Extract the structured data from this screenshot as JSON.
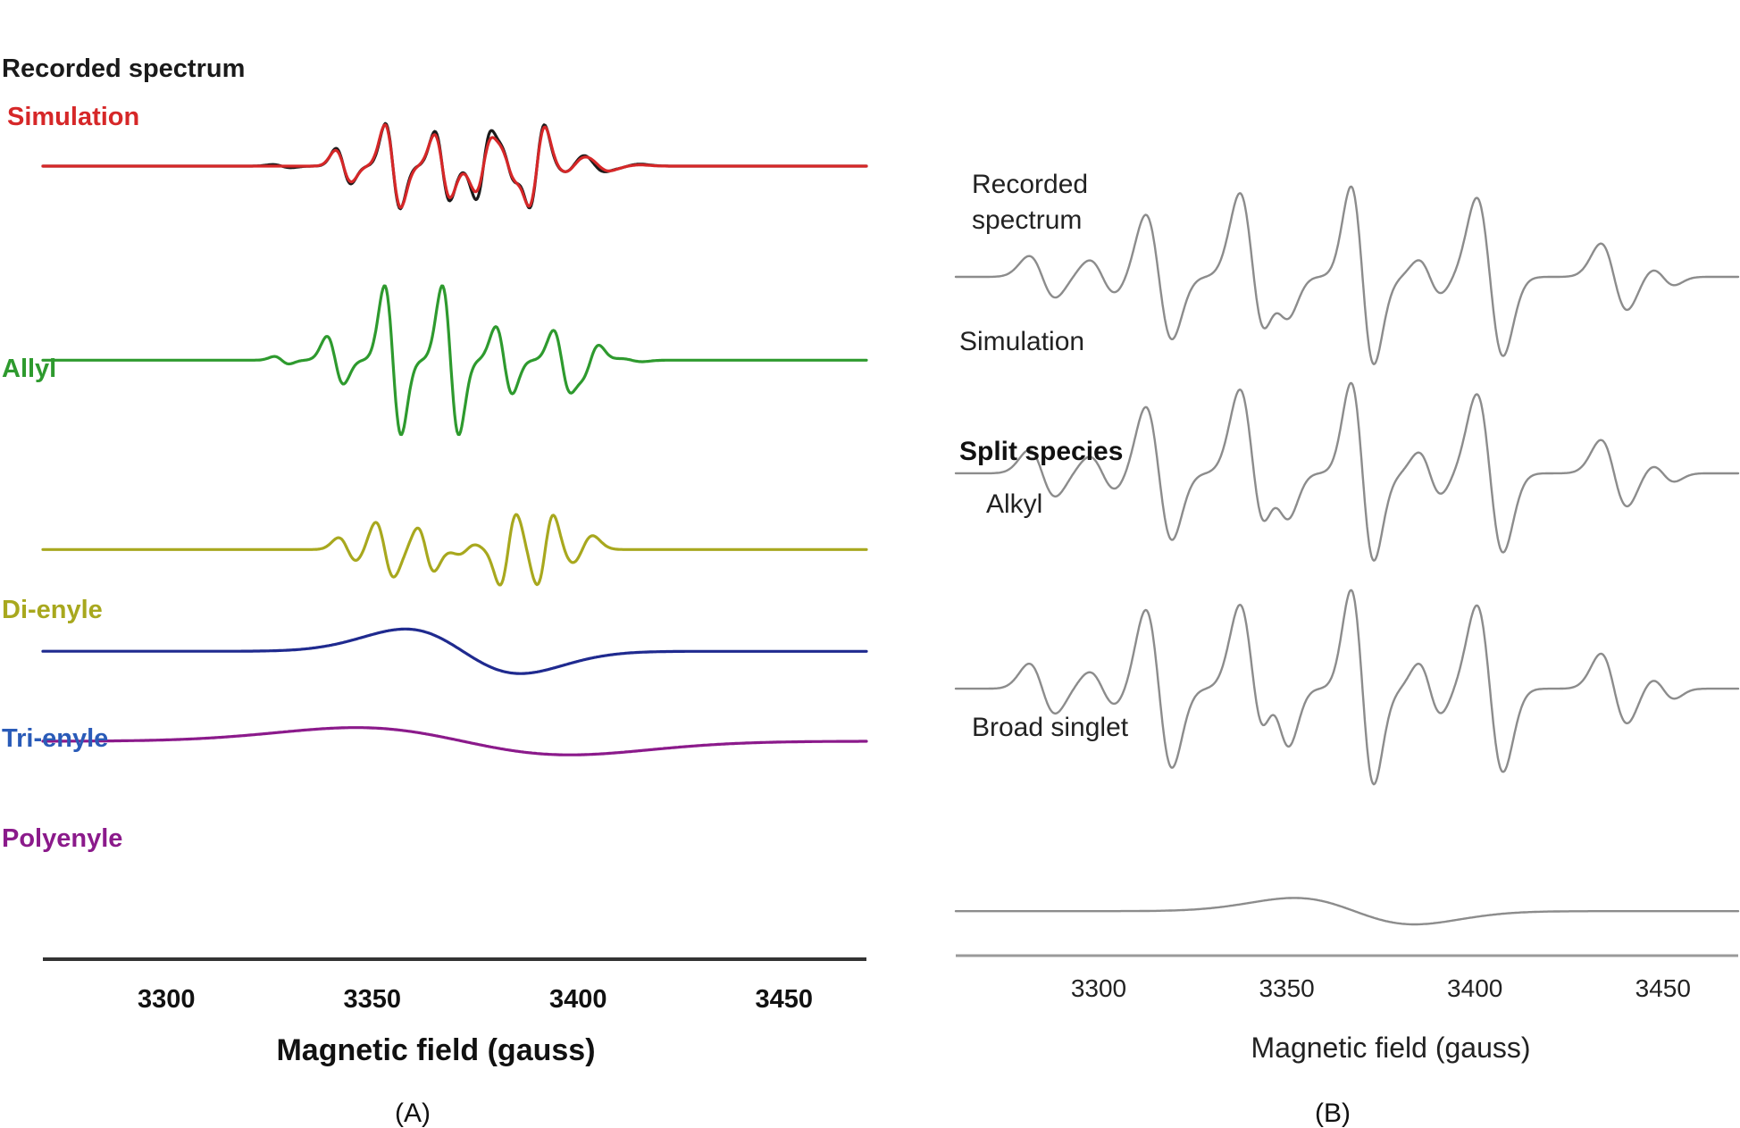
{
  "chart_data": [
    {
      "panel_label": "(A)",
      "type": "line",
      "xlabel": "Magnetic field (gauss)",
      "xlim": [
        3270,
        3470
      ],
      "xticks": [
        3300,
        3350,
        3400,
        3450
      ],
      "grid": false,
      "series": [
        {
          "name": "Recorded spectrum",
          "color": "#1a1a1a",
          "baseline": 0.0,
          "scale": 0.275,
          "peaks": [
            [
              3328,
              2.2,
              0.04
            ],
            [
              3343,
              1.8,
              0.45
            ],
            [
              3355,
              1.8,
              1.08
            ],
            [
              3367,
              1.8,
              0.88
            ],
            [
              3377,
              1.8,
              -0.85
            ],
            [
              3383,
              1.6,
              0.35
            ],
            [
              3390,
              1.8,
              -1.05
            ],
            [
              3399,
              2.2,
              -0.15
            ],
            [
              3404,
              2.2,
              0.12
            ],
            [
              3412,
              3.0,
              -0.05
            ]
          ]
        },
        {
          "name": "Simulation",
          "color": "#d62728",
          "baseline": 0.0,
          "scale": 0.275,
          "peaks": [
            [
              3343,
              1.9,
              0.4
            ],
            [
              3355,
              1.9,
              1.05
            ],
            [
              3367,
              1.9,
              0.8
            ],
            [
              3377,
              1.9,
              -0.65
            ],
            [
              3383,
              1.7,
              0.3
            ],
            [
              3390,
              1.9,
              -1.0
            ],
            [
              3399,
              2.3,
              -0.15
            ],
            [
              3405,
              2.3,
              0.1
            ],
            [
              3412,
              3.0,
              -0.03
            ]
          ]
        },
        {
          "name": "Allyl",
          "color": "#2e9a2e",
          "baseline": -0.82,
          "scale": 0.52,
          "peaks": [
            [
              3328,
              1.8,
              0.05
            ],
            [
              3341,
              2.0,
              0.32
            ],
            [
              3355,
              2.0,
              1.0
            ],
            [
              3369,
              2.0,
              1.0
            ],
            [
              3382,
              2.0,
              0.45
            ],
            [
              3396,
              2.0,
              0.4
            ],
            [
              3403,
              2.0,
              -0.2
            ],
            [
              3413,
              2.5,
              0.02
            ]
          ]
        },
        {
          "name": "Di-enyle",
          "color": "#a8a81e",
          "baseline": -1.62,
          "scale": 0.275,
          "peaks": [
            [
              3344,
              2.2,
              0.3
            ],
            [
              3353,
              2.2,
              0.7
            ],
            [
              3363,
              2.0,
              0.55
            ],
            [
              3373,
              2.0,
              -0.12
            ],
            [
              3383,
              2.0,
              -0.9
            ],
            [
              3392,
              2.0,
              -0.9
            ],
            [
              3401,
              2.5,
              -0.35
            ]
          ]
        },
        {
          "name": "Tri-enyle",
          "color": "#1f2a8f",
          "baseline": -2.05,
          "scale": 0.155,
          "peaks": [
            [
              3372,
              14,
              1.0
            ]
          ]
        },
        {
          "name": "Polyenyle",
          "color": "#8b1a8b",
          "baseline": -2.43,
          "scale": 0.095,
          "peaks": [
            [
              3372,
              26,
              1.0
            ]
          ]
        }
      ]
    },
    {
      "panel_label": "(B)",
      "type": "line",
      "xlabel": "Magnetic field (gauss)",
      "xlim": [
        3262,
        3470
      ],
      "xticks": [
        3300,
        3350,
        3400,
        3450
      ],
      "grid": false,
      "group_label": "Split species",
      "series": [
        {
          "name": "Recorded spectrum",
          "color": "#8c8c8c",
          "baseline": 0.0,
          "scale": 0.58,
          "peaks": [
            [
              3285,
              3.5,
              0.25
            ],
            [
              3301,
              3.5,
              0.2
            ],
            [
              3316,
              3.5,
              0.75
            ],
            [
              3341,
              3.5,
              1.0
            ],
            [
              3348,
              3.0,
              0.4
            ],
            [
              3370,
              3.0,
              1.0
            ],
            [
              3372,
              3.5,
              0.1
            ],
            [
              3388,
              3.0,
              0.2
            ],
            [
              3404,
              3.5,
              0.95
            ],
            [
              3437,
              3.5,
              0.4
            ],
            [
              3450,
              3.0,
              0.1
            ]
          ]
        },
        {
          "name": "Simulation",
          "color": "#8c8c8c",
          "baseline": -0.83,
          "scale": 0.58,
          "peaks": [
            [
              3285,
              3.5,
              0.28
            ],
            [
              3301,
              3.5,
              0.2
            ],
            [
              3316,
              3.5,
              0.8
            ],
            [
              3341,
              3.5,
              1.0
            ],
            [
              3348,
              3.0,
              0.45
            ],
            [
              3370,
              3.0,
              1.0
            ],
            [
              3372,
              3.5,
              0.1
            ],
            [
              3388,
              3.0,
              0.25
            ],
            [
              3404,
              3.5,
              0.95
            ],
            [
              3437,
              3.5,
              0.4
            ],
            [
              3450,
              3.0,
              0.1
            ]
          ]
        },
        {
          "name": "Alkyl",
          "color": "#8c8c8c",
          "baseline": -1.74,
          "scale": 0.58,
          "peaks": [
            [
              3285,
              3.5,
              0.3
            ],
            [
              3301,
              3.5,
              0.2
            ],
            [
              3316,
              3.5,
              0.95
            ],
            [
              3341,
              3.5,
              1.0
            ],
            [
              3348,
              3.0,
              0.6
            ],
            [
              3370,
              3.0,
              1.1
            ],
            [
              3372,
              3.5,
              0.1
            ],
            [
              3388,
              3.0,
              0.3
            ],
            [
              3404,
              3.5,
              1.0
            ],
            [
              3437,
              3.5,
              0.42
            ],
            [
              3450,
              3.0,
              0.12
            ]
          ]
        },
        {
          "name": "Broad singlet",
          "color": "#8c8c8c",
          "baseline": -2.68,
          "scale": 0.092,
          "peaks": [
            [
              3368,
              16,
              1.0
            ]
          ]
        }
      ]
    }
  ]
}
